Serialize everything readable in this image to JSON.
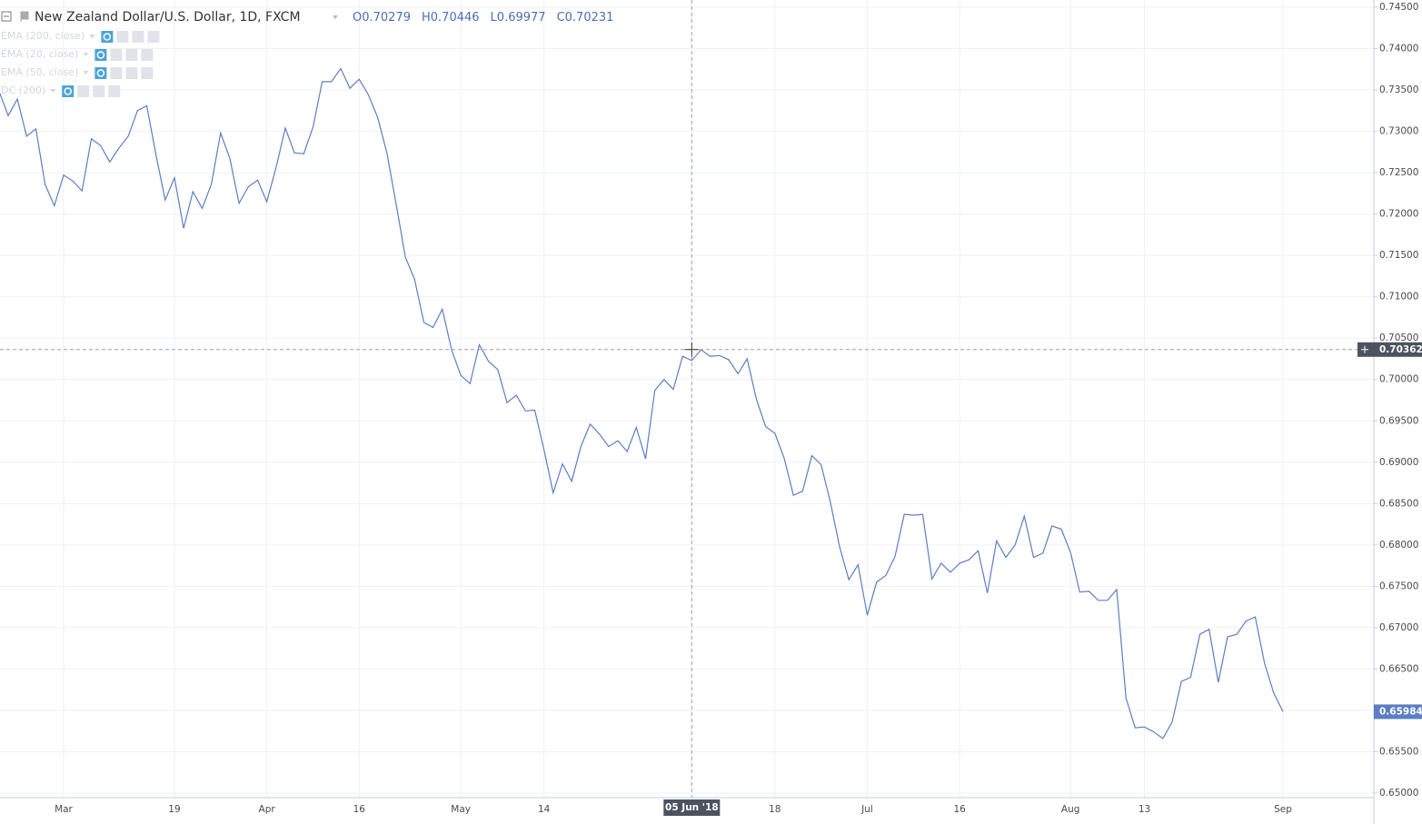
{
  "chart_data": {
    "type": "line",
    "title": "New Zealand Dollar/U.S. Dollar, 1D, FXCM",
    "ohlc": [
      {
        "label": "O",
        "value": 0.70279
      },
      {
        "label": "H",
        "value": 0.70446
      },
      {
        "label": "L",
        "value": 0.69977
      },
      {
        "label": "C",
        "value": 0.70231
      }
    ],
    "indicators": [
      "EMA (200, close)",
      "EMA (20, close)",
      "EMA (50, close)",
      "DC (200)"
    ],
    "categories": [
      null,
      null,
      null,
      null,
      null,
      null,
      null,
      "Mar",
      null,
      null,
      null,
      null,
      null,
      null,
      null,
      null,
      null,
      null,
      null,
      "19",
      null,
      null,
      null,
      null,
      null,
      null,
      null,
      null,
      null,
      "Apr",
      null,
      null,
      null,
      null,
      null,
      null,
      null,
      null,
      null,
      "16",
      null,
      null,
      null,
      null,
      null,
      null,
      null,
      null,
      null,
      null,
      "May",
      null,
      null,
      null,
      null,
      null,
      null,
      null,
      null,
      "14",
      null,
      null,
      null,
      null,
      null,
      null,
      null,
      null,
      null,
      null,
      null,
      null,
      null,
      null,
      null,
      "05 Jun '18",
      null,
      null,
      null,
      null,
      null,
      null,
      null,
      null,
      "18",
      null,
      null,
      null,
      null,
      null,
      null,
      null,
      null,
      null,
      "Jul",
      null,
      null,
      null,
      null,
      null,
      null,
      null,
      null,
      null,
      "16",
      null,
      null,
      null,
      null,
      null,
      null,
      null,
      null,
      null,
      null,
      null,
      "Aug",
      null,
      null,
      null,
      null,
      null,
      null,
      null,
      "13",
      null,
      null,
      null,
      null,
      null,
      null,
      null,
      null,
      null,
      null,
      null,
      null,
      null,
      null,
      "Sep"
    ],
    "values": [
      0.7349,
      0.7319,
      0.7339,
      0.7294,
      0.7303,
      0.7236,
      0.721,
      0.7247,
      0.724,
      0.7228,
      0.7291,
      0.7283,
      0.7263,
      0.728,
      0.7294,
      0.7325,
      0.7331,
      0.7272,
      0.7217,
      0.7244,
      0.7183,
      0.7227,
      0.7207,
      0.7236,
      0.7298,
      0.7267,
      0.7213,
      0.7233,
      0.7241,
      0.7215,
      0.7256,
      0.7304,
      0.7274,
      0.7273,
      0.7305,
      0.736,
      0.736,
      0.7376,
      0.7352,
      0.7363,
      0.7344,
      0.7317,
      0.7274,
      0.7212,
      0.7148,
      0.7121,
      0.7069,
      0.7063,
      0.7085,
      0.7036,
      0.7005,
      0.6995,
      0.7042,
      0.7022,
      0.7012,
      0.6972,
      0.6981,
      0.6962,
      0.6963,
      0.6915,
      0.6863,
      0.6898,
      0.6877,
      0.6919,
      0.6946,
      0.6934,
      0.6919,
      0.6926,
      0.6913,
      0.6942,
      0.6904,
      0.6987,
      0.7,
      0.6988,
      0.7028,
      0.7023,
      0.7036,
      0.7028,
      0.7029,
      0.7024,
      0.7007,
      0.7025,
      0.6976,
      0.6943,
      0.6935,
      0.6905,
      0.686,
      0.6865,
      0.6908,
      0.6897,
      0.6852,
      0.6798,
      0.6758,
      0.6776,
      0.6715,
      0.6755,
      0.6763,
      0.6786,
      0.6837,
      0.6836,
      0.6837,
      0.6759,
      0.6778,
      0.6767,
      0.6778,
      0.6782,
      0.6793,
      0.6742,
      0.6805,
      0.6785,
      0.68,
      0.6835,
      0.6785,
      0.679,
      0.6823,
      0.6819,
      0.6791,
      0.6743,
      0.6744,
      0.6733,
      0.6733,
      0.6746,
      0.6615,
      0.6579,
      0.658,
      0.6574,
      0.6566,
      0.6586,
      0.6635,
      0.664,
      0.6692,
      0.6698,
      0.6634,
      0.6689,
      0.6692,
      0.6708,
      0.6713,
      0.6657,
      0.6621,
      0.65984
    ],
    "color": "#5b7ec4",
    "ylim": [
      0.65,
      0.745
    ],
    "yticks": [
      {
        "value": 0.745,
        "label": "0.74500"
      },
      {
        "value": 0.74,
        "label": "0.74000"
      },
      {
        "value": 0.735,
        "label": "0.73500"
      },
      {
        "value": 0.73,
        "label": "0.73000"
      },
      {
        "value": 0.725,
        "label": "0.72500"
      },
      {
        "value": 0.72,
        "label": "0.72000"
      },
      {
        "value": 0.715,
        "label": "0.71500"
      },
      {
        "value": 0.71,
        "label": "0.71000"
      },
      {
        "value": 0.705,
        "label": "0.70500"
      },
      {
        "value": 0.7,
        "label": "0.70000"
      },
      {
        "value": 0.695,
        "label": "0.69500"
      },
      {
        "value": 0.69,
        "label": "0.69000"
      },
      {
        "value": 0.685,
        "label": "0.68500"
      },
      {
        "value": 0.68,
        "label": "0.68000"
      },
      {
        "value": 0.675,
        "label": "0.67500"
      },
      {
        "value": 0.67,
        "label": "0.67000"
      },
      {
        "value": 0.665,
        "label": "0.66500"
      },
      {
        "value": 0.66,
        "label": "0.66000"
      },
      {
        "value": 0.655,
        "label": "0.65500"
      },
      {
        "value": 0.65,
        "label": "0.65000"
      }
    ],
    "grid": true,
    "crosshair": {
      "category": 75,
      "value": 0.70362
    }
  }
}
